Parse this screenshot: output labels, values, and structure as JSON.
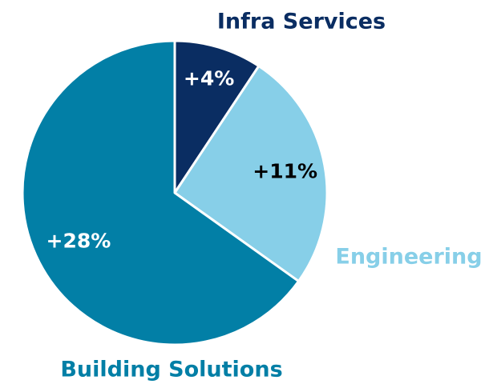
{
  "chart_data": {
    "type": "pie",
    "categories": [
      "Infra Services",
      "Engineering",
      "Building Solutions"
    ],
    "values": [
      4,
      11,
      28
    ],
    "value_labels": [
      "+4%",
      "+11%",
      "+28%"
    ],
    "colors": [
      "#0a2d62",
      "#87cfe8",
      "#027fa6"
    ],
    "value_label_colors": [
      "#ffffff",
      "#000000",
      "#ffffff"
    ]
  }
}
